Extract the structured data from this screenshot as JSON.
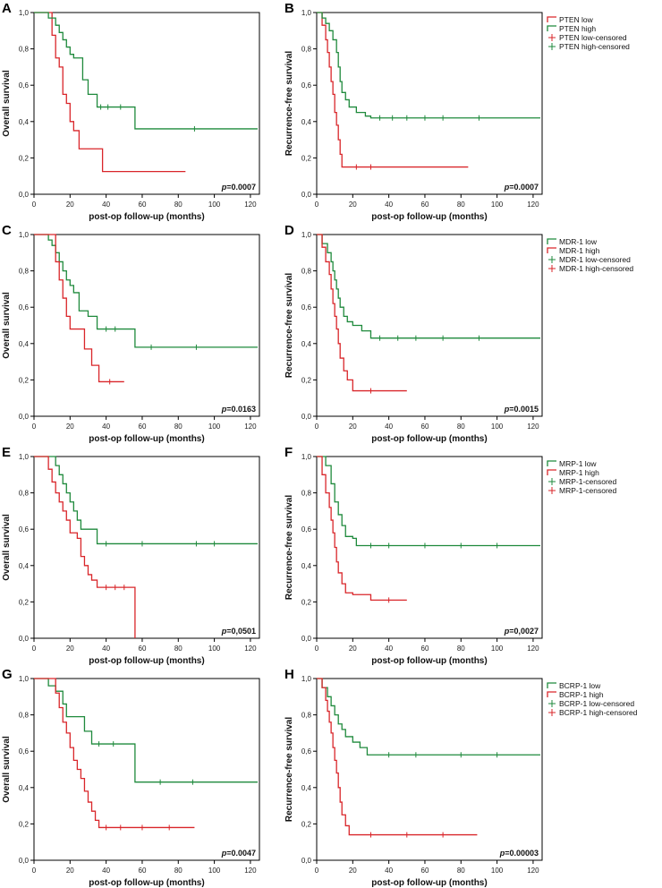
{
  "chart_data": [
    {
      "panel": "A",
      "type": "line",
      "step": true,
      "xlabel": "post-op follow-up (months)",
      "ylabel": "Overall survival",
      "xlim": [
        0,
        125
      ],
      "ylim": [
        0,
        1
      ],
      "xticks": [
        "0",
        "20",
        "40",
        "60",
        "80",
        "100",
        "120"
      ],
      "yticks": [
        "0,0",
        "0,2",
        "0,4",
        "0,6",
        "0,8",
        "1,0"
      ],
      "pvalue": "=0.0007",
      "legend": null,
      "series": [
        {
          "name": "PTEN low",
          "color": "#d9262a",
          "x": [
            0,
            10,
            12,
            14,
            16,
            18,
            20,
            22,
            25,
            30,
            38,
            84
          ],
          "y": [
            1,
            0.875,
            0.75,
            0.7,
            0.55,
            0.5,
            0.4,
            0.35,
            0.25,
            0.25,
            0.125,
            0.125
          ],
          "censored": []
        },
        {
          "name": "PTEN high",
          "color": "#1f8a3c",
          "x": [
            0,
            8,
            12,
            14,
            16,
            18,
            20,
            22,
            27,
            30,
            35,
            52,
            56,
            124
          ],
          "y": [
            1,
            0.97,
            0.93,
            0.89,
            0.85,
            0.81,
            0.77,
            0.75,
            0.63,
            0.55,
            0.48,
            0.48,
            0.36,
            0.36
          ],
          "censored": [
            [
              37,
              0.48
            ],
            [
              41,
              0.48
            ],
            [
              48,
              0.48
            ],
            [
              89,
              0.36
            ]
          ]
        }
      ]
    },
    {
      "panel": "B",
      "type": "line",
      "step": true,
      "xlabel": "post-op follow-up (months)",
      "ylabel": "Recurrence-free survival",
      "xlim": [
        0,
        125
      ],
      "ylim": [
        0,
        1
      ],
      "xticks": [
        "0",
        "20",
        "40",
        "60",
        "80",
        "100",
        "120"
      ],
      "yticks": [
        "0,0",
        "0,2",
        "0,4",
        "0,6",
        "0,8",
        "1,0"
      ],
      "pvalue": "=0.0007",
      "legend": [
        "PTEN low",
        "PTEN high",
        "PTEN low-censored",
        "PTEN high-censored"
      ],
      "series": [
        {
          "name": "PTEN low",
          "color": "#d9262a",
          "x": [
            0,
            3,
            5,
            6,
            7,
            8,
            9,
            10,
            11,
            12,
            13,
            14,
            84
          ],
          "y": [
            1,
            0.93,
            0.85,
            0.78,
            0.7,
            0.62,
            0.55,
            0.45,
            0.38,
            0.3,
            0.22,
            0.15,
            0.15
          ],
          "censored": [
            [
              22,
              0.15
            ],
            [
              30,
              0.15
            ]
          ]
        },
        {
          "name": "PTEN high",
          "color": "#1f8a3c",
          "x": [
            0,
            3,
            5,
            7,
            9,
            11,
            12,
            13,
            14,
            16,
            18,
            22,
            27,
            30,
            124
          ],
          "y": [
            1,
            0.97,
            0.94,
            0.9,
            0.85,
            0.78,
            0.7,
            0.62,
            0.56,
            0.52,
            0.48,
            0.45,
            0.43,
            0.42,
            0.42
          ],
          "censored": [
            [
              35,
              0.42
            ],
            [
              42,
              0.42
            ],
            [
              50,
              0.42
            ],
            [
              60,
              0.42
            ],
            [
              70,
              0.42
            ],
            [
              90,
              0.42
            ]
          ]
        }
      ]
    },
    {
      "panel": "C",
      "type": "line",
      "step": true,
      "xlabel": "post-op follow-up (months)",
      "ylabel": "Overall survival",
      "xlim": [
        0,
        125
      ],
      "ylim": [
        0,
        1
      ],
      "xticks": [
        "0",
        "20",
        "40",
        "60",
        "80",
        "100",
        "120"
      ],
      "yticks": [
        "0,0",
        "0,2",
        "0,4",
        "0,6",
        "0,8",
        "1,0"
      ],
      "pvalue": "=0.0163",
      "legend": null,
      "series": [
        {
          "name": "MDR-1 low",
          "color": "#1f8a3c",
          "x": [
            0,
            8,
            10,
            12,
            14,
            16,
            18,
            20,
            22,
            25,
            30,
            35,
            52,
            56,
            124
          ],
          "y": [
            1,
            0.97,
            0.94,
            0.9,
            0.85,
            0.8,
            0.75,
            0.72,
            0.68,
            0.58,
            0.55,
            0.48,
            0.48,
            0.38,
            0.38
          ],
          "censored": [
            [
              40,
              0.48
            ],
            [
              45,
              0.48
            ],
            [
              65,
              0.38
            ],
            [
              90,
              0.38
            ]
          ]
        },
        {
          "name": "MDR-1 high",
          "color": "#d9262a",
          "x": [
            0,
            12,
            14,
            16,
            18,
            20,
            28,
            32,
            36,
            50
          ],
          "y": [
            1,
            0.85,
            0.75,
            0.65,
            0.55,
            0.48,
            0.37,
            0.28,
            0.19,
            0.19
          ],
          "censored": [
            [
              42,
              0.19
            ]
          ]
        }
      ]
    },
    {
      "panel": "D",
      "type": "line",
      "step": true,
      "xlabel": "post-op follow-up (months)",
      "ylabel": "Recurrence-free survival",
      "xlim": [
        0,
        125
      ],
      "ylim": [
        0,
        1
      ],
      "xticks": [
        "0",
        "20",
        "40",
        "60",
        "80",
        "100",
        "120"
      ],
      "yticks": [
        "0,0",
        "0,2",
        "0,4",
        "0,6",
        "0,8",
        "1,0"
      ],
      "pvalue": "=0.0015",
      "legend": [
        "MDR-1 low",
        "MDR-1 high",
        "MDR-1 low-censored",
        "MDR-1 high-censored"
      ],
      "series": [
        {
          "name": "MDR-1 low",
          "color": "#1f8a3c",
          "x": [
            0,
            3,
            6,
            8,
            9,
            10,
            11,
            12,
            13,
            15,
            17,
            20,
            25,
            30,
            124
          ],
          "y": [
            1,
            0.95,
            0.9,
            0.85,
            0.8,
            0.75,
            0.7,
            0.65,
            0.6,
            0.55,
            0.52,
            0.5,
            0.47,
            0.43,
            0.43
          ],
          "censored": [
            [
              35,
              0.43
            ],
            [
              45,
              0.43
            ],
            [
              55,
              0.43
            ],
            [
              70,
              0.43
            ],
            [
              90,
              0.43
            ]
          ]
        },
        {
          "name": "MDR-1 high",
          "color": "#d9262a",
          "x": [
            0,
            3,
            5,
            7,
            8,
            9,
            10,
            11,
            12,
            13,
            15,
            17,
            20,
            50
          ],
          "y": [
            1,
            0.93,
            0.85,
            0.78,
            0.7,
            0.62,
            0.55,
            0.48,
            0.4,
            0.32,
            0.25,
            0.2,
            0.14,
            0.14
          ],
          "censored": [
            [
              30,
              0.14
            ]
          ]
        }
      ]
    },
    {
      "panel": "E",
      "type": "line",
      "step": true,
      "xlabel": "post-op follow-up (months)",
      "ylabel": "Overall survival",
      "xlim": [
        0,
        125
      ],
      "ylim": [
        0,
        1
      ],
      "xticks": [
        "0",
        "20",
        "40",
        "60",
        "80",
        "100",
        "120"
      ],
      "yticks": [
        "0,0",
        "0,2",
        "0,4",
        "0,6",
        "0,8",
        "1,0"
      ],
      "pvalue": "=0,0501",
      "legend": null,
      "series": [
        {
          "name": "MRP-1 low",
          "color": "#1f8a3c",
          "x": [
            0,
            12,
            14,
            16,
            18,
            20,
            22,
            24,
            26,
            35,
            124
          ],
          "y": [
            1,
            0.95,
            0.9,
            0.85,
            0.8,
            0.75,
            0.7,
            0.65,
            0.6,
            0.52,
            0.52
          ],
          "censored": [
            [
              40,
              0.52
            ],
            [
              60,
              0.52
            ],
            [
              90,
              0.52
            ],
            [
              100,
              0.52
            ]
          ]
        },
        {
          "name": "MRP-1 high",
          "color": "#d9262a",
          "x": [
            0,
            8,
            10,
            12,
            14,
            16,
            18,
            20,
            24,
            26,
            28,
            30,
            32,
            35,
            56,
            56.01
          ],
          "y": [
            1,
            0.93,
            0.86,
            0.8,
            0.75,
            0.7,
            0.65,
            0.58,
            0.55,
            0.45,
            0.4,
            0.35,
            0.32,
            0.28,
            0.28,
            0
          ],
          "censored": [
            [
              40,
              0.28
            ],
            [
              45,
              0.28
            ],
            [
              50,
              0.28
            ]
          ]
        }
      ]
    },
    {
      "panel": "F",
      "type": "line",
      "step": true,
      "xlabel": "post-op follow-up (months)",
      "ylabel": "Recurrence-free survival",
      "xlim": [
        0,
        125
      ],
      "ylim": [
        0,
        1
      ],
      "xticks": [
        "0",
        "20",
        "40",
        "60",
        "80",
        "100",
        "120"
      ],
      "yticks": [
        "0,0",
        "0,2",
        "0,4",
        "0,6",
        "0,8",
        "1,0"
      ],
      "pvalue": "=0,0027",
      "legend": [
        "MRP-1 low",
        "MRP-1 high",
        "MRP-1-censored",
        "MRP-1-censored"
      ],
      "series": [
        {
          "name": "MRP-1 low",
          "color": "#1f8a3c",
          "x": [
            0,
            5,
            8,
            10,
            12,
            14,
            16,
            20,
            22,
            124
          ],
          "y": [
            1,
            0.95,
            0.85,
            0.75,
            0.68,
            0.62,
            0.56,
            0.55,
            0.51,
            0.51
          ],
          "censored": [
            [
              30,
              0.51
            ],
            [
              40,
              0.51
            ],
            [
              60,
              0.51
            ],
            [
              80,
              0.51
            ],
            [
              100,
              0.51
            ]
          ]
        },
        {
          "name": "MRP-1 high",
          "color": "#d9262a",
          "x": [
            0,
            3,
            5,
            7,
            8,
            9,
            10,
            11,
            12,
            14,
            16,
            20,
            30,
            50
          ],
          "y": [
            1,
            0.9,
            0.8,
            0.72,
            0.65,
            0.58,
            0.5,
            0.42,
            0.36,
            0.3,
            0.25,
            0.24,
            0.21,
            0.21
          ],
          "censored": [
            [
              40,
              0.21
            ]
          ]
        }
      ]
    },
    {
      "panel": "G",
      "type": "line",
      "step": true,
      "xlabel": "post-op follow-up (months)",
      "ylabel": "Overall survival",
      "xlim": [
        0,
        125
      ],
      "ylim": [
        0,
        1
      ],
      "xticks": [
        "0",
        "20",
        "40",
        "60",
        "80",
        "100",
        "120"
      ],
      "yticks": [
        "0,0",
        "0,2",
        "0,4",
        "0,6",
        "0,8",
        "1,0"
      ],
      "pvalue": "=0.0047",
      "legend": null,
      "series": [
        {
          "name": "BCRP-1 low",
          "color": "#1f8a3c",
          "x": [
            0,
            8,
            12,
            16,
            18,
            20,
            28,
            32,
            52,
            56,
            124
          ],
          "y": [
            1,
            0.96,
            0.93,
            0.86,
            0.79,
            0.79,
            0.71,
            0.64,
            0.64,
            0.43,
            0.43
          ],
          "censored": [
            [
              36,
              0.64
            ],
            [
              44,
              0.64
            ],
            [
              70,
              0.43
            ],
            [
              88,
              0.43
            ]
          ]
        },
        {
          "name": "BCRP-1 high",
          "color": "#d9262a",
          "x": [
            0,
            12,
            14,
            16,
            18,
            20,
            22,
            24,
            26,
            28,
            30,
            32,
            34,
            36,
            89
          ],
          "y": [
            1,
            0.92,
            0.84,
            0.76,
            0.7,
            0.62,
            0.55,
            0.5,
            0.45,
            0.38,
            0.32,
            0.27,
            0.22,
            0.18,
            0.18
          ],
          "censored": [
            [
              40,
              0.18
            ],
            [
              48,
              0.18
            ],
            [
              60,
              0.18
            ],
            [
              75,
              0.18
            ]
          ]
        }
      ]
    },
    {
      "panel": "H",
      "type": "line",
      "step": true,
      "xlabel": "post-op follow-up (months)",
      "ylabel": "Recurrence-free survival",
      "xlim": [
        0,
        125
      ],
      "ylim": [
        0,
        1
      ],
      "xticks": [
        "0",
        "20",
        "40",
        "60",
        "80",
        "100",
        "120"
      ],
      "yticks": [
        "0,0",
        "0,2",
        "0,4",
        "0,6",
        "0,8",
        "1,0"
      ],
      "pvalue": "=0.00003",
      "legend": [
        "BCRP-1 low",
        "BCRP-1 high",
        "BCRP-1 low-censored",
        "BCRP-1 high-censored"
      ],
      "series": [
        {
          "name": "BCRP-1 low",
          "color": "#1f8a3c",
          "x": [
            0,
            3,
            6,
            8,
            10,
            12,
            14,
            16,
            20,
            24,
            28,
            124
          ],
          "y": [
            1,
            0.95,
            0.9,
            0.85,
            0.8,
            0.75,
            0.72,
            0.68,
            0.65,
            0.62,
            0.58,
            0.58
          ],
          "censored": [
            [
              40,
              0.58
            ],
            [
              55,
              0.58
            ],
            [
              80,
              0.58
            ],
            [
              100,
              0.58
            ]
          ]
        },
        {
          "name": "BCRP-1 high",
          "color": "#d9262a",
          "x": [
            0,
            3,
            5,
            6,
            7,
            8,
            9,
            10,
            11,
            12,
            13,
            14,
            16,
            18,
            89
          ],
          "y": [
            1,
            0.95,
            0.88,
            0.82,
            0.76,
            0.7,
            0.62,
            0.55,
            0.48,
            0.4,
            0.32,
            0.25,
            0.19,
            0.14,
            0.14
          ],
          "censored": [
            [
              30,
              0.14
            ],
            [
              50,
              0.14
            ],
            [
              70,
              0.14
            ]
          ]
        }
      ]
    }
  ]
}
